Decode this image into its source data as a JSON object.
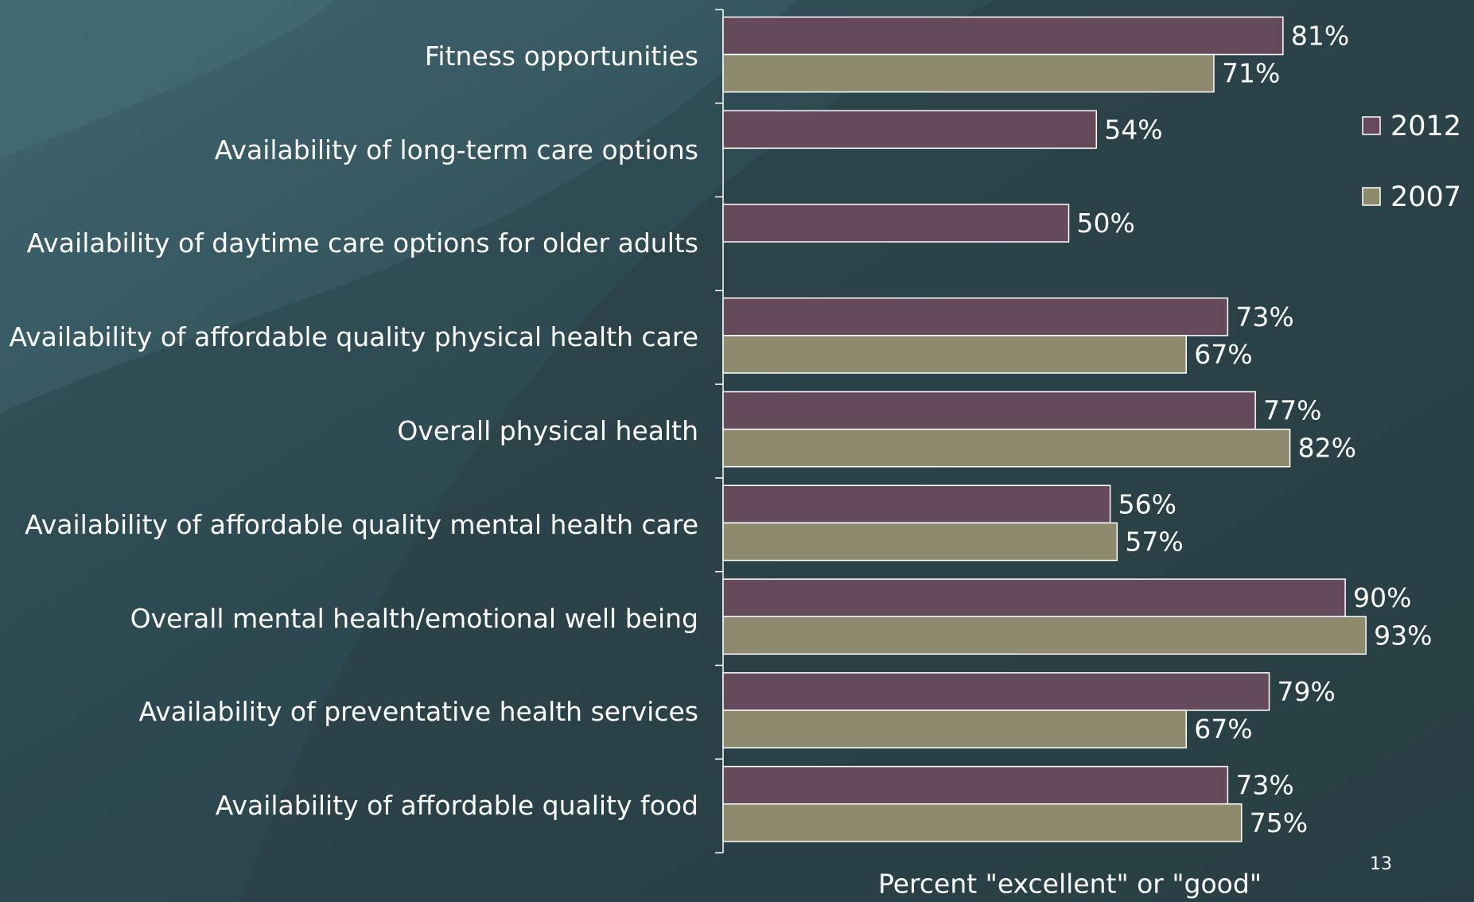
{
  "chart_data": {
    "type": "bar",
    "orientation": "horizontal",
    "categories": [
      "Fitness opportunities",
      "Availability of long-term care options",
      "Availability of daytime care options for older adults",
      "Availability of affordable quality physical health care",
      "Overall physical health",
      "Availability of affordable quality mental health care",
      "Overall mental health/emotional well being",
      "Availability of preventative health services",
      "Availability of affordable quality food"
    ],
    "series": [
      {
        "name": "2012",
        "color": "#654a5c",
        "values": [
          81,
          54,
          50,
          73,
          77,
          56,
          90,
          79,
          73
        ],
        "value_labels": [
          "81%",
          "54%",
          "50%",
          "73%",
          "77%",
          "56%",
          "90%",
          "79%",
          "73%"
        ]
      },
      {
        "name": "2007",
        "color": "#8e8a6e",
        "values": [
          71,
          null,
          null,
          67,
          82,
          57,
          93,
          67,
          75
        ],
        "value_labels": [
          "71%",
          null,
          null,
          "67%",
          "82%",
          "57%",
          "93%",
          "67%",
          "75%"
        ]
      }
    ],
    "xlabel": "Percent \"excellent\" or \"good\"",
    "xlim": [
      0,
      100
    ],
    "grid": false,
    "legend": "right",
    "page_number": "13"
  }
}
